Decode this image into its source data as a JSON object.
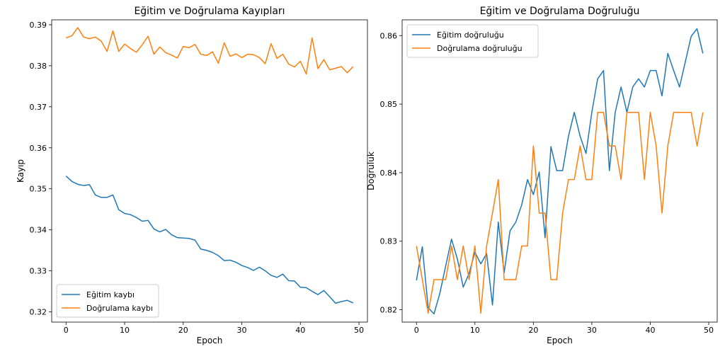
{
  "chart_data": [
    {
      "type": "line",
      "title": "Eğitim ve Doğrulama Kayıpları",
      "xlabel": "Epoch",
      "ylabel": "Kayıp",
      "xlim": [
        -2.45,
        51.45
      ],
      "ylim": [
        0.3175,
        0.3912
      ],
      "xticks": [
        0,
        10,
        20,
        30,
        40,
        50
      ],
      "yticks": [
        0.32,
        0.33,
        0.34,
        0.35,
        0.36,
        0.37,
        0.38,
        0.39
      ],
      "xtick_labels": [
        "0",
        "10",
        "20",
        "30",
        "40",
        "50"
      ],
      "ytick_labels": [
        "0.32",
        "0.33",
        "0.34",
        "0.35",
        "0.36",
        "0.37",
        "0.38",
        "0.39"
      ],
      "legend_position": "lower-left",
      "grid": false,
      "x": [
        0,
        1,
        2,
        3,
        4,
        5,
        6,
        7,
        8,
        9,
        10,
        11,
        12,
        13,
        14,
        15,
        16,
        17,
        18,
        19,
        20,
        21,
        22,
        23,
        24,
        25,
        26,
        27,
        28,
        29,
        30,
        31,
        32,
        33,
        34,
        35,
        36,
        37,
        38,
        39,
        40,
        41,
        42,
        43,
        44,
        45,
        46,
        47,
        48,
        49
      ],
      "series": [
        {
          "name": "Eğitim kaybı",
          "color": "#1f77b4",
          "values": [
            0.3531,
            0.3518,
            0.3511,
            0.3508,
            0.351,
            0.3485,
            0.3479,
            0.3479,
            0.3485,
            0.3449,
            0.344,
            0.3437,
            0.343,
            0.3421,
            0.3423,
            0.3402,
            0.3395,
            0.3401,
            0.3388,
            0.3381,
            0.338,
            0.3379,
            0.3375,
            0.3353,
            0.335,
            0.3345,
            0.3337,
            0.3325,
            0.3326,
            0.3321,
            0.3313,
            0.3308,
            0.3301,
            0.3309,
            0.33,
            0.3289,
            0.3284,
            0.3292,
            0.3276,
            0.3275,
            0.326,
            0.3259,
            0.325,
            0.3242,
            0.3252,
            0.3237,
            0.3221,
            0.3225,
            0.3228,
            0.3222
          ]
        },
        {
          "name": "Doğrulama kaybı",
          "color": "#ff7f0e",
          "values": [
            0.3868,
            0.3873,
            0.3893,
            0.387,
            0.3866,
            0.387,
            0.386,
            0.3835,
            0.3885,
            0.3835,
            0.3853,
            0.3842,
            0.3833,
            0.3851,
            0.3872,
            0.3828,
            0.3846,
            0.3832,
            0.3826,
            0.3819,
            0.3847,
            0.3844,
            0.3852,
            0.3828,
            0.3825,
            0.3834,
            0.3806,
            0.3856,
            0.3823,
            0.3829,
            0.382,
            0.3828,
            0.3827,
            0.382,
            0.3805,
            0.3854,
            0.3818,
            0.3828,
            0.3804,
            0.3797,
            0.3811,
            0.378,
            0.3868,
            0.3793,
            0.3815,
            0.379,
            0.3794,
            0.3798,
            0.3783,
            0.3798
          ]
        }
      ]
    },
    {
      "type": "line",
      "title": "Eğitim ve Doğrulama Doğruluğu",
      "xlabel": "Epoch",
      "ylabel": "Doğruluk",
      "xlim": [
        -2.45,
        51.45
      ],
      "ylim": [
        0.8182,
        0.8623
      ],
      "xticks": [
        0,
        10,
        20,
        30,
        40,
        50
      ],
      "yticks": [
        0.82,
        0.83,
        0.84,
        0.85,
        0.86
      ],
      "xtick_labels": [
        "0",
        "10",
        "20",
        "30",
        "40",
        "50"
      ],
      "ytick_labels": [
        "0.82",
        "0.83",
        "0.84",
        "0.85",
        "0.86"
      ],
      "legend_position": "upper-left",
      "grid": false,
      "x": [
        0,
        1,
        2,
        3,
        4,
        5,
        6,
        7,
        8,
        9,
        10,
        11,
        12,
        13,
        14,
        15,
        16,
        17,
        18,
        19,
        20,
        21,
        22,
        23,
        24,
        25,
        26,
        27,
        28,
        29,
        30,
        31,
        32,
        33,
        34,
        35,
        36,
        37,
        38,
        39,
        40,
        41,
        42,
        43,
        44,
        45,
        46,
        47,
        48,
        49
      ],
      "series": [
        {
          "name": "Eğitim doğruluğu",
          "color": "#1f77b4",
          "values": [
            0.8243,
            0.8292,
            0.8203,
            0.8194,
            0.8224,
            0.8264,
            0.8303,
            0.8274,
            0.8233,
            0.8253,
            0.8284,
            0.8267,
            0.8282,
            0.8207,
            0.8328,
            0.8254,
            0.8315,
            0.8328,
            0.8353,
            0.839,
            0.8368,
            0.8401,
            0.8305,
            0.8438,
            0.8403,
            0.8403,
            0.8453,
            0.8488,
            0.8453,
            0.8428,
            0.8488,
            0.8537,
            0.8549,
            0.8403,
            0.8488,
            0.8525,
            0.8488,
            0.8525,
            0.8537,
            0.8525,
            0.8549,
            0.8549,
            0.8512,
            0.8574,
            0.8549,
            0.8525,
            0.8562,
            0.8599,
            0.861,
            0.8574
          ]
        },
        {
          "name": "Doğrulama doğruluğu",
          "color": "#ff7f0e",
          "values": [
            0.8293,
            0.8244,
            0.8195,
            0.8244,
            0.8244,
            0.8244,
            0.8293,
            0.8244,
            0.8293,
            0.8244,
            0.8293,
            0.8195,
            0.8293,
            0.8341,
            0.839,
            0.8244,
            0.8244,
            0.8244,
            0.8293,
            0.8293,
            0.8439,
            0.8341,
            0.8341,
            0.8244,
            0.8244,
            0.8341,
            0.839,
            0.839,
            0.8439,
            0.839,
            0.839,
            0.8488,
            0.8488,
            0.8439,
            0.8439,
            0.839,
            0.8488,
            0.8488,
            0.8488,
            0.839,
            0.8488,
            0.8439,
            0.8341,
            0.8439,
            0.8488,
            0.8488,
            0.8488,
            0.8488,
            0.8439,
            0.8488
          ]
        }
      ]
    }
  ]
}
